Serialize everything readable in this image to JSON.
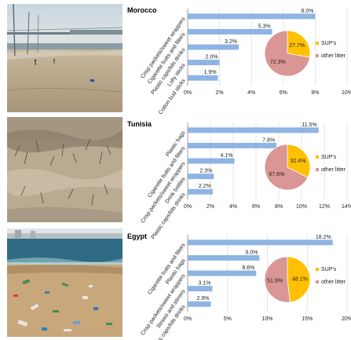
{
  "panels": [
    {
      "country": "Morocco",
      "photo_scene": "beach-with-pier",
      "chart_data": {
        "type": "bar",
        "orientation": "horizontal",
        "categories": [
          "Crisp packets/sweet wrappers",
          "Cigarette butts and filters",
          "Plastic caps/lids drinks",
          "Lolly sticks",
          "Cotton bud sticks"
        ],
        "values": [
          8.0,
          5.3,
          3.2,
          2.0,
          1.9
        ],
        "value_labels": [
          "8.0%",
          "5.3%",
          "3.2%",
          "2.0%",
          "1.9%"
        ],
        "xlim": [
          0,
          10
        ],
        "xticks": [
          0,
          2,
          4,
          6,
          8,
          10
        ],
        "xtick_labels": [
          "0%",
          "2%",
          "4%",
          "6%",
          "8%",
          "10%"
        ],
        "bar_color": "#8fb4e3",
        "inset_pie": {
          "type": "pie",
          "labels": [
            "SUP's",
            "other litter"
          ],
          "values": [
            27.7,
            72.3
          ],
          "value_labels": [
            "27.7%",
            "72.3%"
          ],
          "colors": [
            "#ffc000",
            "#d99694"
          ]
        }
      }
    },
    {
      "country": "Tunisia",
      "photo_scene": "dry-sand-debris",
      "chart_data": {
        "type": "bar",
        "orientation": "horizontal",
        "categories": [
          "Plastic bags",
          "Cigarette butts and filters",
          "Crisp packets/sweet wrappers",
          "Drink bottles",
          "Plastic caps/lids drinks"
        ],
        "values": [
          11.5,
          7.8,
          4.1,
          2.3,
          2.2
        ],
        "value_labels": [
          "11.5%",
          "7.8%",
          "4.1%",
          "2.3%",
          "2.2%"
        ],
        "xlim": [
          0,
          14
        ],
        "xticks": [
          0,
          2,
          4,
          6,
          8,
          10,
          12,
          14
        ],
        "xtick_labels": [
          "0%",
          "2%",
          "4%",
          "6%",
          "8%",
          "10%",
          "12%",
          "14%"
        ],
        "bar_color": "#8fb4e3",
        "inset_pie": {
          "type": "pie",
          "labels": [
            "SUP's",
            "other litter"
          ],
          "values": [
            32.4,
            67.6
          ],
          "value_labels": [
            "32.4%",
            "67.6%"
          ],
          "colors": [
            "#ffc000",
            "#d99694"
          ]
        }
      }
    },
    {
      "country": "Egypt",
      "photo_scene": "littered-shore",
      "chart_data": {
        "type": "bar",
        "orientation": "horizontal",
        "categories": [
          "Cigarette butts and filters",
          "Plastic bags",
          "Crisp packets/sweet wrappers",
          "Straws and stirrers",
          "Plastic caps/lids drinks"
        ],
        "values": [
          18.2,
          9.0,
          8.6,
          3.1,
          2.9
        ],
        "value_labels": [
          "18.2%",
          "9.0%",
          "8.6%",
          "3.1%",
          "2.9%"
        ],
        "xlim": [
          0,
          20
        ],
        "xticks": [
          0,
          5,
          10,
          15,
          20
        ],
        "xtick_labels": [
          "0%",
          "5%",
          "10%",
          "15%",
          "20%"
        ],
        "bar_color": "#8fb4e3",
        "inset_pie": {
          "type": "pie",
          "labels": [
            "SUP's",
            "other litter"
          ],
          "values": [
            48.1,
            51.9
          ],
          "value_labels": [
            "48.1%",
            "51.9%"
          ],
          "colors": [
            "#ffc000",
            "#d99694"
          ]
        }
      }
    }
  ]
}
